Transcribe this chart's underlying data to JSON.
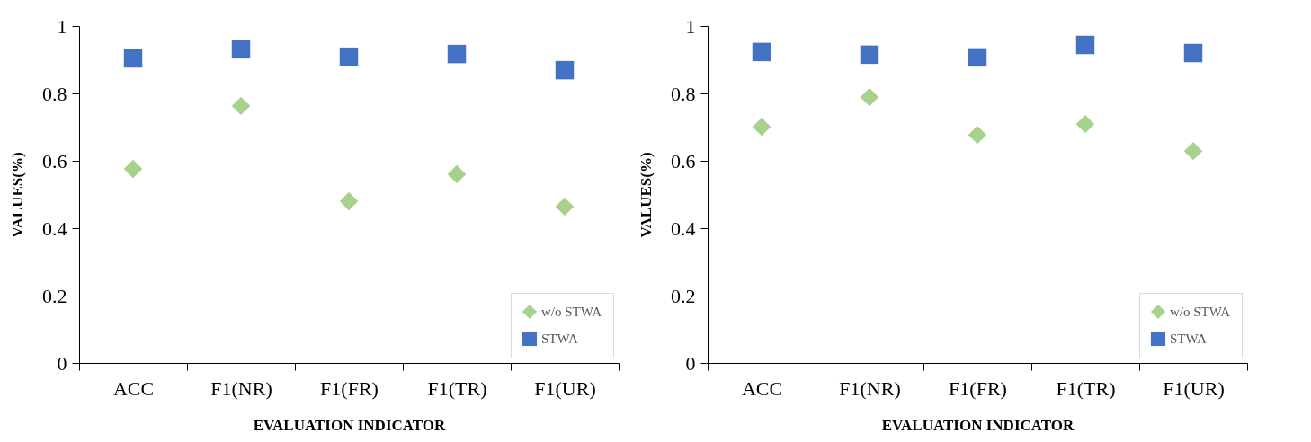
{
  "chart_data": [
    {
      "type": "scatter",
      "xlabel": "EVALUATION INDICATOR",
      "ylabel": "VALUES(%)",
      "categories": [
        "ACC",
        "F1(NR)",
        "F1(FR)",
        "F1(TR)",
        "F1(UR)"
      ],
      "series": [
        {
          "name": "w/o STWA",
          "color": "#a9d18e",
          "marker": "diamond",
          "values": [
            0.576,
            0.763,
            0.48,
            0.56,
            0.464
          ]
        },
        {
          "name": "STWA",
          "color": "#4472c4",
          "marker": "square",
          "values": [
            0.904,
            0.931,
            0.909,
            0.917,
            0.869
          ]
        }
      ],
      "ylim": [
        0,
        1
      ],
      "yticks": [
        0,
        0.2,
        0.4,
        0.6,
        0.8,
        1
      ],
      "grid": false,
      "legend": "bottom right"
    },
    {
      "type": "scatter",
      "xlabel": "EVALUATION INDICATOR",
      "ylabel": "VALUES(%)",
      "categories": [
        "ACC",
        "F1(NR)",
        "F1(FR)",
        "F1(TR)",
        "F1(UR)"
      ],
      "series": [
        {
          "name": "w/o STWA",
          "color": "#a9d18e",
          "marker": "diamond",
          "values": [
            0.701,
            0.789,
            0.677,
            0.709,
            0.629
          ]
        },
        {
          "name": "STWA",
          "color": "#4472c4",
          "marker": "square",
          "values": [
            0.923,
            0.915,
            0.907,
            0.944,
            0.92
          ]
        }
      ],
      "ylim": [
        0,
        1
      ],
      "yticks": [
        0,
        0.2,
        0.4,
        0.6,
        0.8,
        1
      ],
      "grid": false,
      "legend": "bottom right"
    }
  ]
}
